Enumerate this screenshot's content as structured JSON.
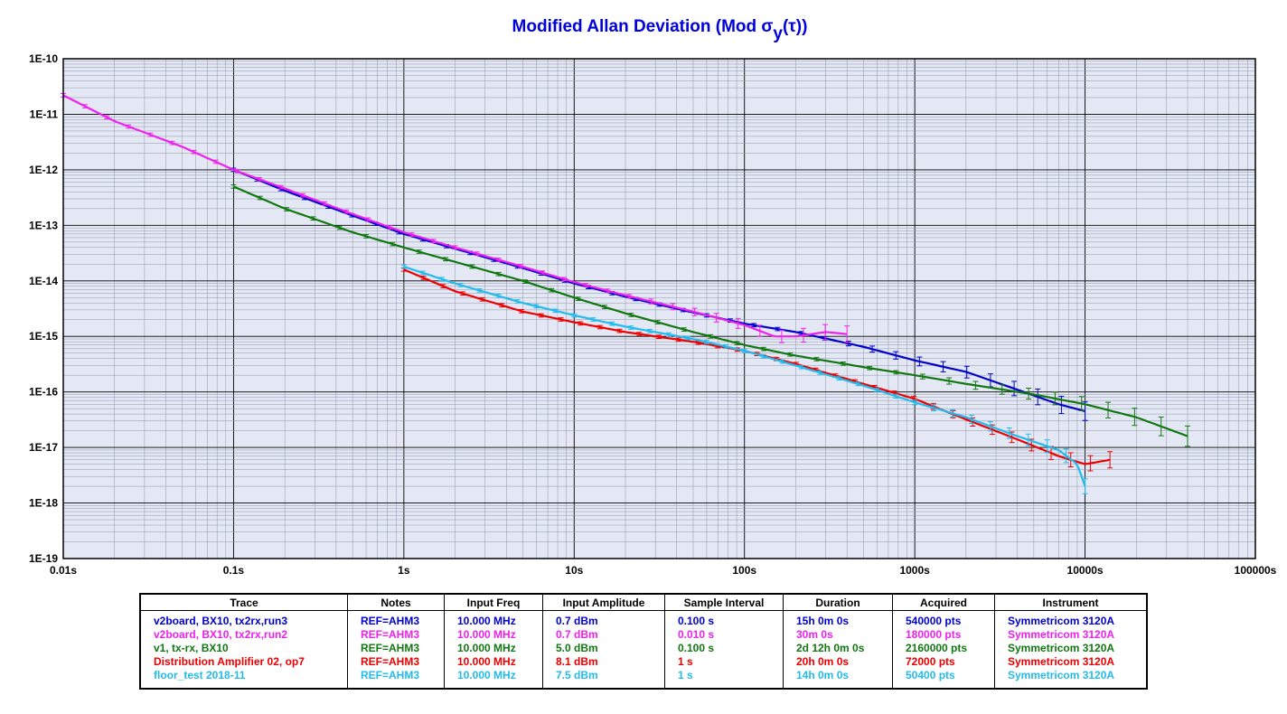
{
  "chart_title": {
    "main": "Modified Allan Deviation (Mod σ",
    "sub": "y",
    "tail": "(τ))"
  },
  "colors": {
    "blue": "#0000cc",
    "magenta": "#ee22ee",
    "green": "#117711",
    "red": "#ee0000",
    "cyan": "#22bbee",
    "plot_bg": "#e4e8f4"
  },
  "chart_data": {
    "type": "line",
    "x_scale": "log",
    "y_scale": "log",
    "xlim": [
      0.01,
      100000
    ],
    "ylim": [
      1e-19,
      1e-10
    ],
    "grid": true,
    "x_ticks": [
      "0.01s",
      "0.1s",
      "1s",
      "10s",
      "100s",
      "1000s",
      "10000s",
      "100000s"
    ],
    "y_ticks": [
      "1E-19",
      "1E-18",
      "1E-17",
      "1E-16",
      "1E-15",
      "1E-14",
      "1E-13",
      "1E-12",
      "1E-11",
      "1E-10"
    ],
    "series": [
      {
        "name": "v2board, BX10, tx2rx,run3",
        "color": "#0000cc",
        "x": [
          0.1,
          0.2,
          0.5,
          1,
          2,
          5,
          10,
          20,
          50,
          100,
          200,
          500,
          1000,
          2000,
          4000,
          7000,
          10000
        ],
        "y": [
          1e-12,
          4.2e-13,
          1.5e-13,
          7e-14,
          3.8e-14,
          1.7e-14,
          9e-15,
          5.2e-15,
          2.7e-15,
          1.7e-15,
          1.2e-15,
          6.5e-16,
          3.7e-16,
          2.3e-16,
          1.1e-16,
          6e-17,
          4.5e-17
        ],
        "err_from_x": 300
      },
      {
        "name": "v2board, BX10, tx2rx,run2",
        "color": "#ee22ee",
        "x": [
          0.01,
          0.02,
          0.05,
          0.1,
          0.2,
          0.5,
          1,
          2,
          5,
          10,
          20,
          50,
          100,
          150,
          200,
          300,
          400
        ],
        "y": [
          2.2e-11,
          7.5e-12,
          2.6e-12,
          1e-12,
          4.6e-13,
          1.6e-13,
          7.5e-14,
          4e-14,
          1.8e-14,
          9.5e-15,
          5.5e-15,
          2.8e-15,
          1.6e-15,
          1e-15,
          1e-15,
          1.2e-15,
          1.1e-15
        ],
        "err_from_x": 20
      },
      {
        "name": "v1, tx-rx, BX10",
        "color": "#117711",
        "x": [
          0.1,
          0.2,
          0.5,
          1,
          2,
          5,
          10,
          20,
          50,
          100,
          200,
          500,
          1000,
          2000,
          5000,
          10000,
          20000,
          40000
        ],
        "y": [
          5e-13,
          2e-13,
          7.5e-14,
          4e-14,
          2.2e-14,
          1e-14,
          5e-15,
          2.6e-15,
          1.2e-15,
          7e-16,
          4.5e-16,
          2.8e-16,
          2e-16,
          1.4e-16,
          9e-17,
          6e-17,
          3.5e-17,
          1.6e-17
        ],
        "err_from_x": 800
      },
      {
        "name": "Distribution Amplifier 02, op7",
        "color": "#ee0000",
        "x": [
          1,
          2,
          5,
          10,
          20,
          50,
          100,
          200,
          500,
          1000,
          2000,
          4000,
          7000,
          10000,
          14000
        ],
        "y": [
          1.6e-14,
          6.5e-15,
          2.8e-15,
          1.8e-15,
          1.2e-15,
          8e-16,
          5.5e-16,
          3.2e-16,
          1.4e-16,
          7.5e-17,
          3.2e-17,
          1.4e-17,
          7e-18,
          5e-18,
          6e-18
        ],
        "err_from_x": 700
      },
      {
        "name": "floor_test 2018-11",
        "color": "#22bbee",
        "x": [
          1,
          2,
          5,
          10,
          20,
          50,
          100,
          200,
          500,
          1000,
          2000,
          4000,
          7000,
          9000,
          10000
        ],
        "y": [
          1.8e-14,
          9e-15,
          4e-15,
          2.4e-15,
          1.5e-15,
          9e-16,
          5.5e-16,
          3e-16,
          1.3e-16,
          6.5e-17,
          3.5e-17,
          1.6e-17,
          9e-18,
          5e-18,
          2e-18
        ],
        "err_from_x": 700
      }
    ]
  },
  "table": {
    "headers": [
      "Trace",
      "Notes",
      "Input Freq",
      "Input Amplitude",
      "Sample Interval",
      "Duration",
      "Acquired",
      "Instrument"
    ],
    "rows": [
      {
        "color": "#0000cc",
        "cells": [
          "v2board, BX10, tx2rx,run3",
          "REF=AHM3",
          "10.000 MHz",
          "0.7 dBm",
          "0.100 s",
          "15h 0m 0s",
          "540000 pts",
          "Symmetricom 3120A"
        ]
      },
      {
        "color": "#ee22ee",
        "cells": [
          "v2board, BX10, tx2rx,run2",
          "REF=AHM3",
          "10.000 MHz",
          "0.7 dBm",
          "0.010 s",
          "30m 0s",
          "180000 pts",
          "Symmetricom 3120A"
        ]
      },
      {
        "color": "#117711",
        "cells": [
          "v1, tx-rx, BX10",
          "REF=AHM3",
          "10.000 MHz",
          "5.0 dBm",
          "0.100 s",
          "2d 12h 0m 0s",
          "2160000 pts",
          "Symmetricom 3120A"
        ]
      },
      {
        "color": "#ee0000",
        "cells": [
          "Distribution Amplifier 02, op7",
          "REF=AHM3",
          "10.000 MHz",
          "8.1 dBm",
          "1 s",
          "20h 0m 0s",
          "72000 pts",
          "Symmetricom 3120A"
        ]
      },
      {
        "color": "#22bbee",
        "cells": [
          "floor_test 2018-11",
          "REF=AHM3",
          "10.000 MHz",
          "7.5 dBm",
          "1 s",
          "14h 0m 0s",
          "50400 pts",
          "Symmetricom 3120A"
        ]
      }
    ]
  }
}
